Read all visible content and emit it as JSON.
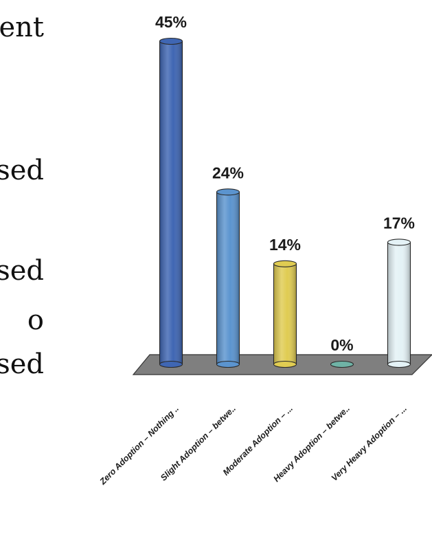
{
  "left_text": [
    "ent",
    "sed",
    "sed",
    "o",
    "sed"
  ],
  "chart_data": {
    "type": "bar",
    "categories": [
      "Zero Adoption – Nothing ..",
      "Slight Adoption – betwe..",
      "Moderate Adoption – ...",
      "Heavy Adoption – betwe..",
      "Very Heavy Adoption – ..."
    ],
    "values": [
      45,
      24,
      14,
      0,
      17
    ],
    "value_labels": [
      "45%",
      "24%",
      "14%",
      "0%",
      "17%"
    ],
    "colors": [
      "#3f66b3",
      "#5b94cf",
      "#e0cc52",
      "#6fb3a6",
      "#e4f2f6"
    ],
    "floor_color": "#7f7f7f",
    "ylim": [
      0,
      45
    ],
    "grid": false,
    "legend": "none"
  }
}
